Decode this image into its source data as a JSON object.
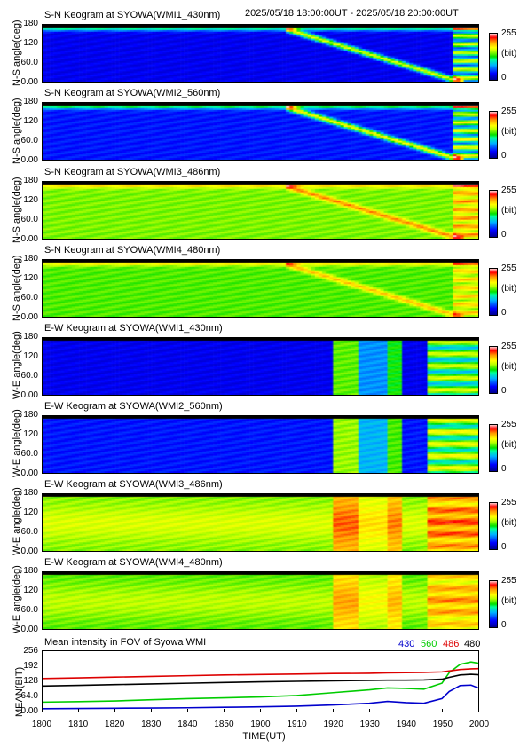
{
  "header": {
    "date_range": "2025/05/18 18:00:00UT - 2025/05/18 20:00:00UT"
  },
  "panels": [
    {
      "title": "S-N Keogram at SYOWA(WMI1_430nm)",
      "ylabel": "N-S angle(deg)",
      "kind": "sn",
      "ch": 0
    },
    {
      "title": "S-N Keogram at SYOWA(WMI2_560nm)",
      "ylabel": "N-S angle(deg)",
      "kind": "sn",
      "ch": 1
    },
    {
      "title": "S-N Keogram at SYOWA(WMI3_486nm)",
      "ylabel": "N-S angle(deg)",
      "kind": "sn",
      "ch": 2
    },
    {
      "title": "S-N Keogram at SYOWA(WMI4_480nm)",
      "ylabel": "N-S angle(deg)",
      "kind": "sn",
      "ch": 3
    },
    {
      "title": "E-W Keogram at SYOWA(WMI1_430nm)",
      "ylabel": "W-E angle(deg)",
      "kind": "ew",
      "ch": 0
    },
    {
      "title": "E-W Keogram at SYOWA(WMI2_560nm)",
      "ylabel": "W-E angle(deg)",
      "kind": "ew",
      "ch": 1
    },
    {
      "title": "E-W Keogram at SYOWA(WMI3_486nm)",
      "ylabel": "W-E angle(deg)",
      "kind": "ew",
      "ch": 2
    },
    {
      "title": "E-W Keogram at SYOWA(WMI4_480nm)",
      "ylabel": "W-E angle(deg)",
      "kind": "ew",
      "ch": 3
    }
  ],
  "keogram_yticks": [
    "0.00",
    "60.0",
    "120",
    "180"
  ],
  "colorbar": {
    "max": "255",
    "unit": "(bit)",
    "min": "0"
  },
  "mean_panel": {
    "title": "Mean intensity in FOV of Syowa WMI",
    "ylabel": "MEAN(BIT)",
    "yticks": [
      "0.00",
      "64.0",
      "128",
      "192",
      "256"
    ],
    "legend": [
      {
        "label": "430",
        "color": "#0000cc"
      },
      {
        "label": "560",
        "color": "#00cc00"
      },
      {
        "label": "486",
        "color": "#dd0000"
      },
      {
        "label": "480",
        "color": "#000000"
      }
    ]
  },
  "chart_data": {
    "type": "line",
    "title": "Mean intensity in FOV of Syowa WMI",
    "xlabel": "TIME(UT)",
    "ylabel": "MEAN(BIT)",
    "xlim": [
      1800,
      2000
    ],
    "ylim": [
      0,
      256
    ],
    "x_ticks": [
      "1800",
      "1810",
      "1820",
      "1830",
      "1840",
      "1850",
      "1900",
      "1910",
      "1920",
      "1930",
      "1940",
      "1950",
      "2000"
    ],
    "x": [
      0,
      10,
      20,
      30,
      40,
      50,
      60,
      70,
      80,
      90,
      95,
      100,
      105,
      110,
      112,
      115,
      118,
      120
    ],
    "series": [
      {
        "name": "430",
        "color": "#0000cc",
        "values": [
          12,
          13,
          14,
          15,
          16,
          18,
          20,
          23,
          28,
          35,
          43,
          38,
          35,
          55,
          85,
          110,
          112,
          100
        ]
      },
      {
        "name": "560",
        "color": "#00cc00",
        "values": [
          40,
          42,
          45,
          50,
          55,
          58,
          62,
          68,
          80,
          92,
          100,
          98,
          95,
          120,
          165,
          200,
          210,
          205
        ]
      },
      {
        "name": "486",
        "color": "#dd0000",
        "values": [
          140,
          143,
          146,
          149,
          152,
          155,
          157,
          159,
          161,
          162,
          164,
          165,
          166,
          168,
          172,
          178,
          181,
          182
        ]
      },
      {
        "name": "480",
        "color": "#000000",
        "values": [
          108,
          111,
          114,
          117,
          120,
          123,
          126,
          128,
          130,
          132,
          133,
          133,
          134,
          137,
          145,
          155,
          158,
          156
        ]
      }
    ]
  }
}
